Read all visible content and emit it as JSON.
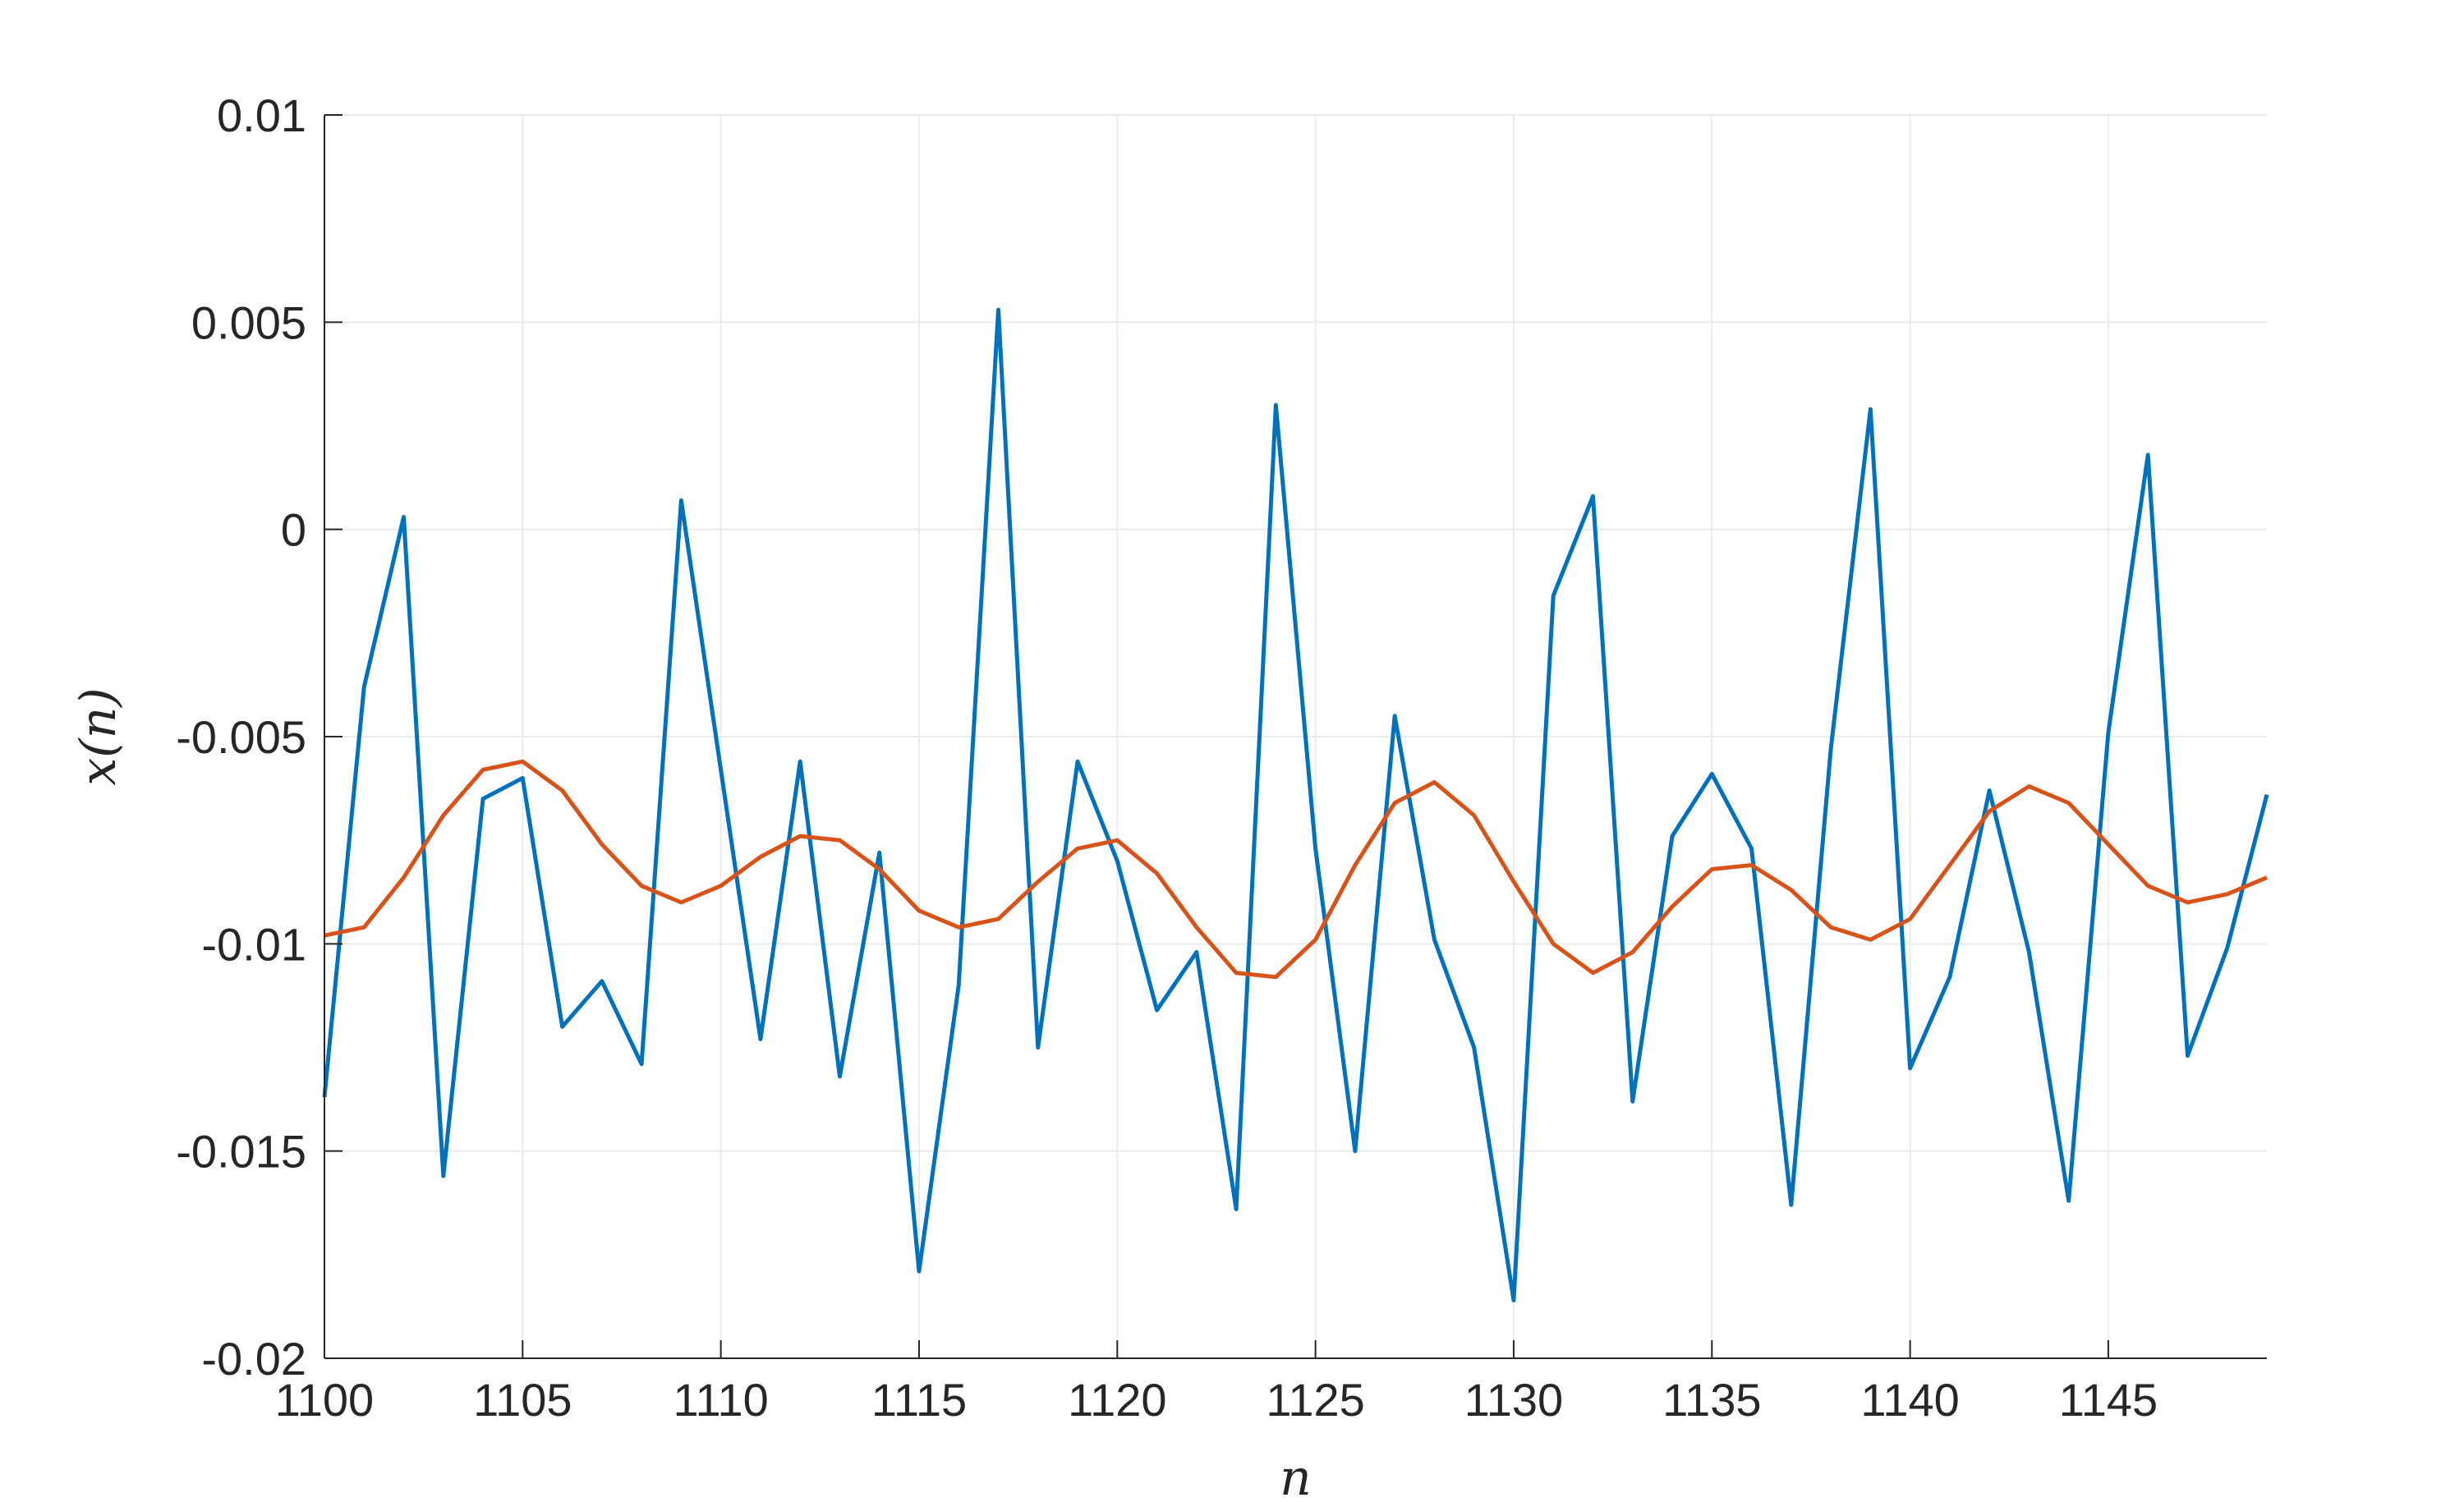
{
  "chart_data": {
    "type": "line",
    "title": "",
    "xlabel": "n",
    "ylabel": "x(n)",
    "xlim": [
      1100,
      1149
    ],
    "ylim": [
      -0.02,
      0.01
    ],
    "grid": true,
    "legend": "none",
    "x_ticks": [
      1100,
      1105,
      1110,
      1115,
      1120,
      1125,
      1130,
      1135,
      1140,
      1145
    ],
    "x_tick_labels": [
      "1100",
      "1105",
      "1110",
      "1115",
      "1120",
      "1125",
      "1130",
      "1135",
      "1140",
      "1145"
    ],
    "y_ticks": [
      0.01,
      0.005,
      0,
      -0.005,
      -0.01,
      -0.015,
      -0.02
    ],
    "y_tick_labels": [
      "0.01",
      "0.005",
      "0",
      "-0.005",
      "-0.01",
      "-0.015",
      "-0.02"
    ],
    "x": [
      1100,
      1101,
      1102,
      1103,
      1104,
      1105,
      1106,
      1107,
      1108,
      1109,
      1110,
      1111,
      1112,
      1113,
      1114,
      1115,
      1116,
      1117,
      1118,
      1119,
      1120,
      1121,
      1122,
      1123,
      1124,
      1125,
      1126,
      1127,
      1128,
      1129,
      1130,
      1131,
      1132,
      1133,
      1134,
      1135,
      1136,
      1137,
      1138,
      1139,
      1140,
      1141,
      1142,
      1143,
      1144,
      1145,
      1146,
      1147,
      1148,
      1149
    ],
    "series": [
      {
        "color": "#0072BD",
        "values": [
          -0.0137,
          -0.0038,
          0.0003,
          -0.0156,
          -0.0065,
          -0.006,
          -0.012,
          -0.0109,
          -0.0129,
          0.0007,
          -0.0058,
          -0.0123,
          -0.0056,
          -0.0132,
          -0.0078,
          -0.0179,
          -0.011,
          0.0053,
          -0.0125,
          -0.0056,
          -0.008,
          -0.0116,
          -0.0102,
          -0.0164,
          0.003,
          -0.0077,
          -0.015,
          -0.0045,
          -0.0099,
          -0.0125,
          -0.0186,
          -0.0016,
          0.0008,
          -0.0138,
          -0.0074,
          -0.0059,
          -0.0077,
          -0.0163,
          -0.0053,
          0.0029,
          -0.013,
          -0.0108,
          -0.0063,
          -0.0102,
          -0.0162,
          -0.0049,
          0.0018,
          -0.0127,
          -0.0101,
          -0.0064
        ]
      },
      {
        "color": "#D95319",
        "values": [
          -0.0098,
          -0.0096,
          -0.0084,
          -0.0069,
          -0.0058,
          -0.0056,
          -0.0063,
          -0.0076,
          -0.0086,
          -0.009,
          -0.0086,
          -0.0079,
          -0.0074,
          -0.0075,
          -0.0082,
          -0.0092,
          -0.0096,
          -0.0094,
          -0.0085,
          -0.0077,
          -0.0075,
          -0.0083,
          -0.0096,
          -0.0107,
          -0.0108,
          -0.0099,
          -0.0081,
          -0.0066,
          -0.0061,
          -0.0069,
          -0.0085,
          -0.01,
          -0.0107,
          -0.0102,
          -0.0091,
          -0.0082,
          -0.0081,
          -0.0087,
          -0.0096,
          -0.0099,
          -0.0094,
          -0.0081,
          -0.0068,
          -0.0062,
          -0.0066,
          -0.0076,
          -0.0086,
          -0.009,
          -0.0088,
          -0.0084
        ]
      }
    ]
  }
}
